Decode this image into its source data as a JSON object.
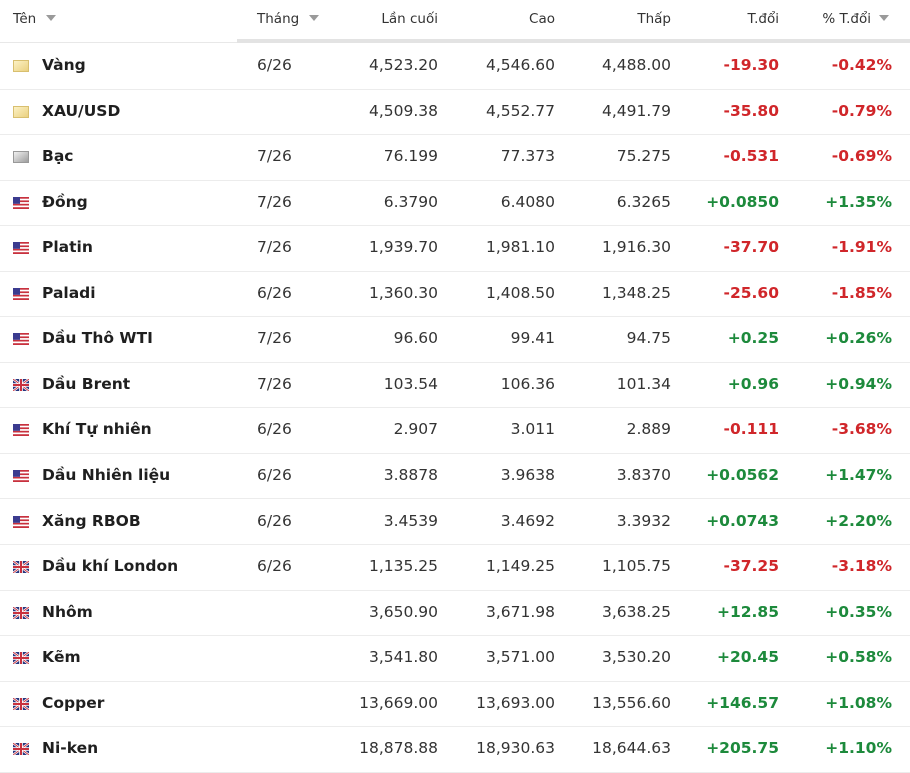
{
  "table": {
    "headers": [
      "Tên",
      "Tháng",
      "Lần cuối",
      "Cao",
      "Thấp",
      "T.đổi",
      "% T.đổi"
    ],
    "rows": [
      [
        "Vàng",
        "6/26",
        "4,523.20",
        "4,546.60",
        "4,488.00",
        "-19.30",
        "-0.42%"
      ],
      [
        "XAU/USD",
        null,
        "4,509.38",
        "4,552.77",
        "4,491.79",
        "-35.80",
        "-0.79%"
      ],
      [
        "Bạc",
        "7/26",
        "76.199",
        "77.373",
        "75.275",
        "-0.531",
        "-0.69%"
      ],
      [
        "Đồng",
        "7/26",
        "6.3790",
        "6.4080",
        "6.3265",
        "+0.0850",
        "+1.35%"
      ],
      [
        "Platin",
        "7/26",
        "1,939.70",
        "1,981.10",
        "1,916.30",
        "-37.70",
        "-1.91%"
      ],
      [
        "Paladi",
        "6/26",
        "1,360.30",
        "1,408.50",
        "1,348.25",
        "-25.60",
        "-1.85%"
      ],
      [
        "Dầu Thô WTI",
        "7/26",
        "96.60",
        "99.41",
        "94.75",
        "+0.25",
        "+0.26%"
      ],
      [
        "Dầu Brent",
        "7/26",
        "103.54",
        "106.36",
        "101.34",
        "+0.96",
        "+0.94%"
      ],
      [
        "Khí Tự nhiên",
        "6/26",
        "2.907",
        "3.011",
        "2.889",
        "-0.111",
        "-3.68%"
      ],
      [
        "Dầu Nhiên liệu",
        "6/26",
        "3.8878",
        "3.9638",
        "3.8370",
        "+0.0562",
        "+1.47%"
      ],
      [
        "Xăng RBOB",
        "6/26",
        "3.4539",
        "3.4692",
        "3.3932",
        "+0.0743",
        "+2.20%"
      ],
      [
        "Dầu khí London",
        "6/26",
        "1,135.25",
        "1,149.25",
        "1,105.75",
        "-37.25",
        "-3.18%"
      ],
      [
        "Nhôm",
        null,
        "3,650.90",
        "3,671.98",
        "3,638.25",
        "+12.85",
        "+0.35%"
      ],
      [
        "Kẽm",
        null,
        "3,541.80",
        "3,571.00",
        "3,530.20",
        "+20.45",
        "+0.58%"
      ],
      [
        "Copper",
        null,
        "13,669.00",
        "13,693.00",
        "13,556.60",
        "+146.57",
        "+1.08%"
      ],
      [
        "Ni-ken",
        null,
        "18,878.88",
        "18,930.63",
        "18,644.63",
        "+205.75",
        "+1.10%"
      ]
    ]
  }
}
